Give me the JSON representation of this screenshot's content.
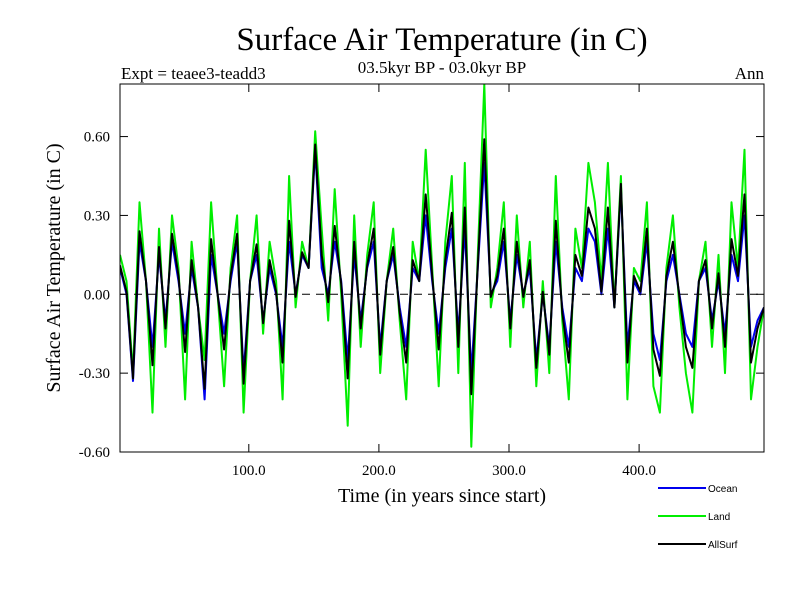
{
  "chart_data": {
    "type": "line",
    "title": "Surface Air Temperature (in C)",
    "subtitle": "03.5kyr BP - 03.0kyr BP",
    "left_label": "Expt = teaee3-teadd3",
    "right_label": "Ann",
    "xlabel": "Time (in years since start)",
    "ylabel": "Surface Air Temperature (in C)",
    "xlim": [
      1,
      496
    ],
    "ylim": [
      -0.6,
      0.8
    ],
    "x_ticks": [
      {
        "value": 100,
        "label": "100.0"
      },
      {
        "value": 200,
        "label": "200.0"
      },
      {
        "value": 300,
        "label": "300.0"
      },
      {
        "value": 400,
        "label": "400.0"
      }
    ],
    "y_ticks": [
      {
        "value": -0.6,
        "label": "-0.60"
      },
      {
        "value": -0.3,
        "label": "-0.30"
      },
      {
        "value": 0.0,
        "label": "0.00"
      },
      {
        "value": 0.3,
        "label": "0.30"
      },
      {
        "value": 0.6,
        "label": "0.60"
      }
    ],
    "zero_line": true,
    "grid": false,
    "legend_position": "bottom-right",
    "series": [
      {
        "name": "Land",
        "color": "#00ee00",
        "x": [
          1,
          6,
          11,
          16,
          21,
          26,
          31,
          36,
          41,
          46,
          51,
          56,
          61,
          66,
          71,
          76,
          81,
          86,
          91,
          96,
          101,
          106,
          111,
          116,
          121,
          126,
          131,
          136,
          141,
          146,
          151,
          156,
          161,
          166,
          171,
          176,
          181,
          186,
          191,
          196,
          201,
          206,
          211,
          216,
          221,
          226,
          231,
          236,
          241,
          246,
          251,
          256,
          261,
          266,
          271,
          276,
          281,
          286,
          291,
          296,
          301,
          306,
          311,
          316,
          321,
          326,
          331,
          336,
          341,
          346,
          351,
          356,
          361,
          366,
          371,
          376,
          381,
          386,
          391,
          396,
          401,
          406,
          411,
          416,
          421,
          426,
          431,
          436,
          441,
          446,
          451,
          456,
          461,
          466,
          471,
          476,
          481,
          486,
          491,
          496
        ],
        "values": [
          0.15,
          0.05,
          -0.3,
          0.35,
          0.05,
          -0.45,
          0.25,
          -0.2,
          0.3,
          0.1,
          -0.4,
          0.2,
          -0.05,
          -0.25,
          0.35,
          0.0,
          -0.35,
          0.1,
          0.3,
          -0.45,
          0.05,
          0.3,
          -0.15,
          0.2,
          0.05,
          -0.4,
          0.45,
          -0.05,
          0.2,
          0.1,
          0.62,
          0.25,
          -0.1,
          0.4,
          0.0,
          -0.5,
          0.3,
          -0.2,
          0.15,
          0.35,
          -0.3,
          0.05,
          0.25,
          -0.1,
          -0.4,
          0.2,
          0.05,
          0.55,
          0.1,
          -0.35,
          0.2,
          0.45,
          -0.3,
          0.5,
          -0.58,
          0.15,
          0.8,
          -0.05,
          0.1,
          0.35,
          -0.2,
          0.3,
          -0.05,
          0.2,
          -0.35,
          0.05,
          -0.3,
          0.45,
          -0.1,
          -0.4,
          0.25,
          0.1,
          0.5,
          0.35,
          0.05,
          0.5,
          -0.05,
          0.45,
          -0.4,
          0.1,
          0.05,
          0.35,
          -0.35,
          -0.45,
          0.1,
          0.3,
          -0.05,
          -0.3,
          -0.45,
          0.05,
          0.2,
          -0.2,
          0.15,
          -0.3,
          0.35,
          0.1,
          0.55,
          -0.4,
          -0.2,
          -0.05
        ]
      },
      {
        "name": "Ocean",
        "color": "#0000ee",
        "x": [
          1,
          6,
          11,
          16,
          21,
          26,
          31,
          36,
          41,
          46,
          51,
          56,
          61,
          66,
          71,
          76,
          81,
          86,
          91,
          96,
          101,
          106,
          111,
          116,
          121,
          126,
          131,
          136,
          141,
          146,
          151,
          156,
          161,
          166,
          171,
          176,
          181,
          186,
          191,
          196,
          201,
          206,
          211,
          216,
          221,
          226,
          231,
          236,
          241,
          246,
          251,
          256,
          261,
          266,
          271,
          276,
          281,
          286,
          291,
          296,
          301,
          306,
          311,
          316,
          321,
          326,
          331,
          336,
          341,
          346,
          351,
          356,
          361,
          366,
          371,
          376,
          381,
          386,
          391,
          396,
          401,
          406,
          411,
          416,
          421,
          426,
          431,
          436,
          441,
          446,
          451,
          456,
          461,
          466,
          471,
          476,
          481,
          486,
          491,
          496
        ],
        "values": [
          0.1,
          0.0,
          -0.33,
          0.2,
          0.05,
          -0.2,
          0.15,
          -0.1,
          0.2,
          0.05,
          -0.15,
          0.1,
          -0.05,
          -0.4,
          0.15,
          0.0,
          -0.15,
          0.05,
          0.2,
          -0.3,
          0.05,
          0.15,
          -0.1,
          0.1,
          0.0,
          -0.2,
          0.2,
          0.0,
          0.15,
          0.1,
          0.55,
          0.1,
          0.0,
          0.2,
          0.05,
          -0.25,
          0.15,
          -0.1,
          0.1,
          0.2,
          -0.2,
          0.05,
          0.15,
          -0.05,
          -0.2,
          0.1,
          0.05,
          0.3,
          0.05,
          -0.15,
          0.1,
          0.25,
          -0.15,
          0.25,
          -0.3,
          0.1,
          0.5,
          0.0,
          0.05,
          0.2,
          -0.1,
          0.15,
          0.0,
          0.1,
          -0.25,
          0.0,
          -0.2,
          0.2,
          -0.05,
          -0.2,
          0.1,
          0.05,
          0.25,
          0.2,
          0.0,
          0.25,
          -0.05,
          0.4,
          -0.2,
          0.05,
          0.0,
          0.2,
          -0.15,
          -0.25,
          0.05,
          0.15,
          0.0,
          -0.15,
          -0.2,
          0.05,
          0.1,
          -0.1,
          0.05,
          -0.15,
          0.15,
          0.05,
          0.3,
          -0.2,
          -0.1,
          -0.05
        ]
      },
      {
        "name": "AllSurf",
        "color": "#000000",
        "x": [
          1,
          6,
          11,
          16,
          21,
          26,
          31,
          36,
          41,
          46,
          51,
          56,
          61,
          66,
          71,
          76,
          81,
          86,
          91,
          96,
          101,
          106,
          111,
          116,
          121,
          126,
          131,
          136,
          141,
          146,
          151,
          156,
          161,
          166,
          171,
          176,
          181,
          186,
          191,
          196,
          201,
          206,
          211,
          216,
          221,
          226,
          231,
          236,
          241,
          246,
          251,
          256,
          261,
          266,
          271,
          276,
          281,
          286,
          291,
          296,
          301,
          306,
          311,
          316,
          321,
          326,
          331,
          336,
          341,
          346,
          351,
          356,
          361,
          366,
          371,
          376,
          381,
          386,
          391,
          396,
          401,
          406,
          411,
          416,
          421,
          426,
          431,
          436,
          441,
          446,
          451,
          456,
          461,
          466,
          471,
          476,
          481,
          486,
          491,
          496
        ],
        "values": [
          0.11,
          0.01,
          -0.32,
          0.24,
          0.05,
          -0.27,
          0.18,
          -0.13,
          0.23,
          0.07,
          -0.22,
          0.13,
          -0.05,
          -0.36,
          0.21,
          0.0,
          -0.21,
          0.07,
          0.23,
          -0.34,
          0.05,
          0.19,
          -0.11,
          0.13,
          0.01,
          -0.26,
          0.28,
          -0.01,
          0.16,
          0.1,
          0.57,
          0.15,
          -0.03,
          0.26,
          0.04,
          -0.32,
          0.2,
          -0.13,
          0.11,
          0.25,
          -0.23,
          0.05,
          0.18,
          -0.07,
          -0.26,
          0.13,
          0.05,
          0.38,
          0.07,
          -0.21,
          0.13,
          0.31,
          -0.2,
          0.33,
          -0.38,
          0.11,
          0.59,
          -0.01,
          0.07,
          0.25,
          -0.13,
          0.2,
          -0.01,
          0.13,
          -0.28,
          0.01,
          -0.23,
          0.28,
          -0.07,
          -0.26,
          0.15,
          0.07,
          0.33,
          0.25,
          0.01,
          0.33,
          -0.05,
          0.42,
          -0.26,
          0.07,
          0.01,
          0.25,
          -0.21,
          -0.31,
          0.07,
          0.2,
          -0.01,
          -0.2,
          -0.28,
          0.05,
          0.13,
          -0.13,
          0.08,
          -0.2,
          0.21,
          0.07,
          0.38,
          -0.26,
          -0.13,
          -0.05
        ]
      }
    ]
  }
}
